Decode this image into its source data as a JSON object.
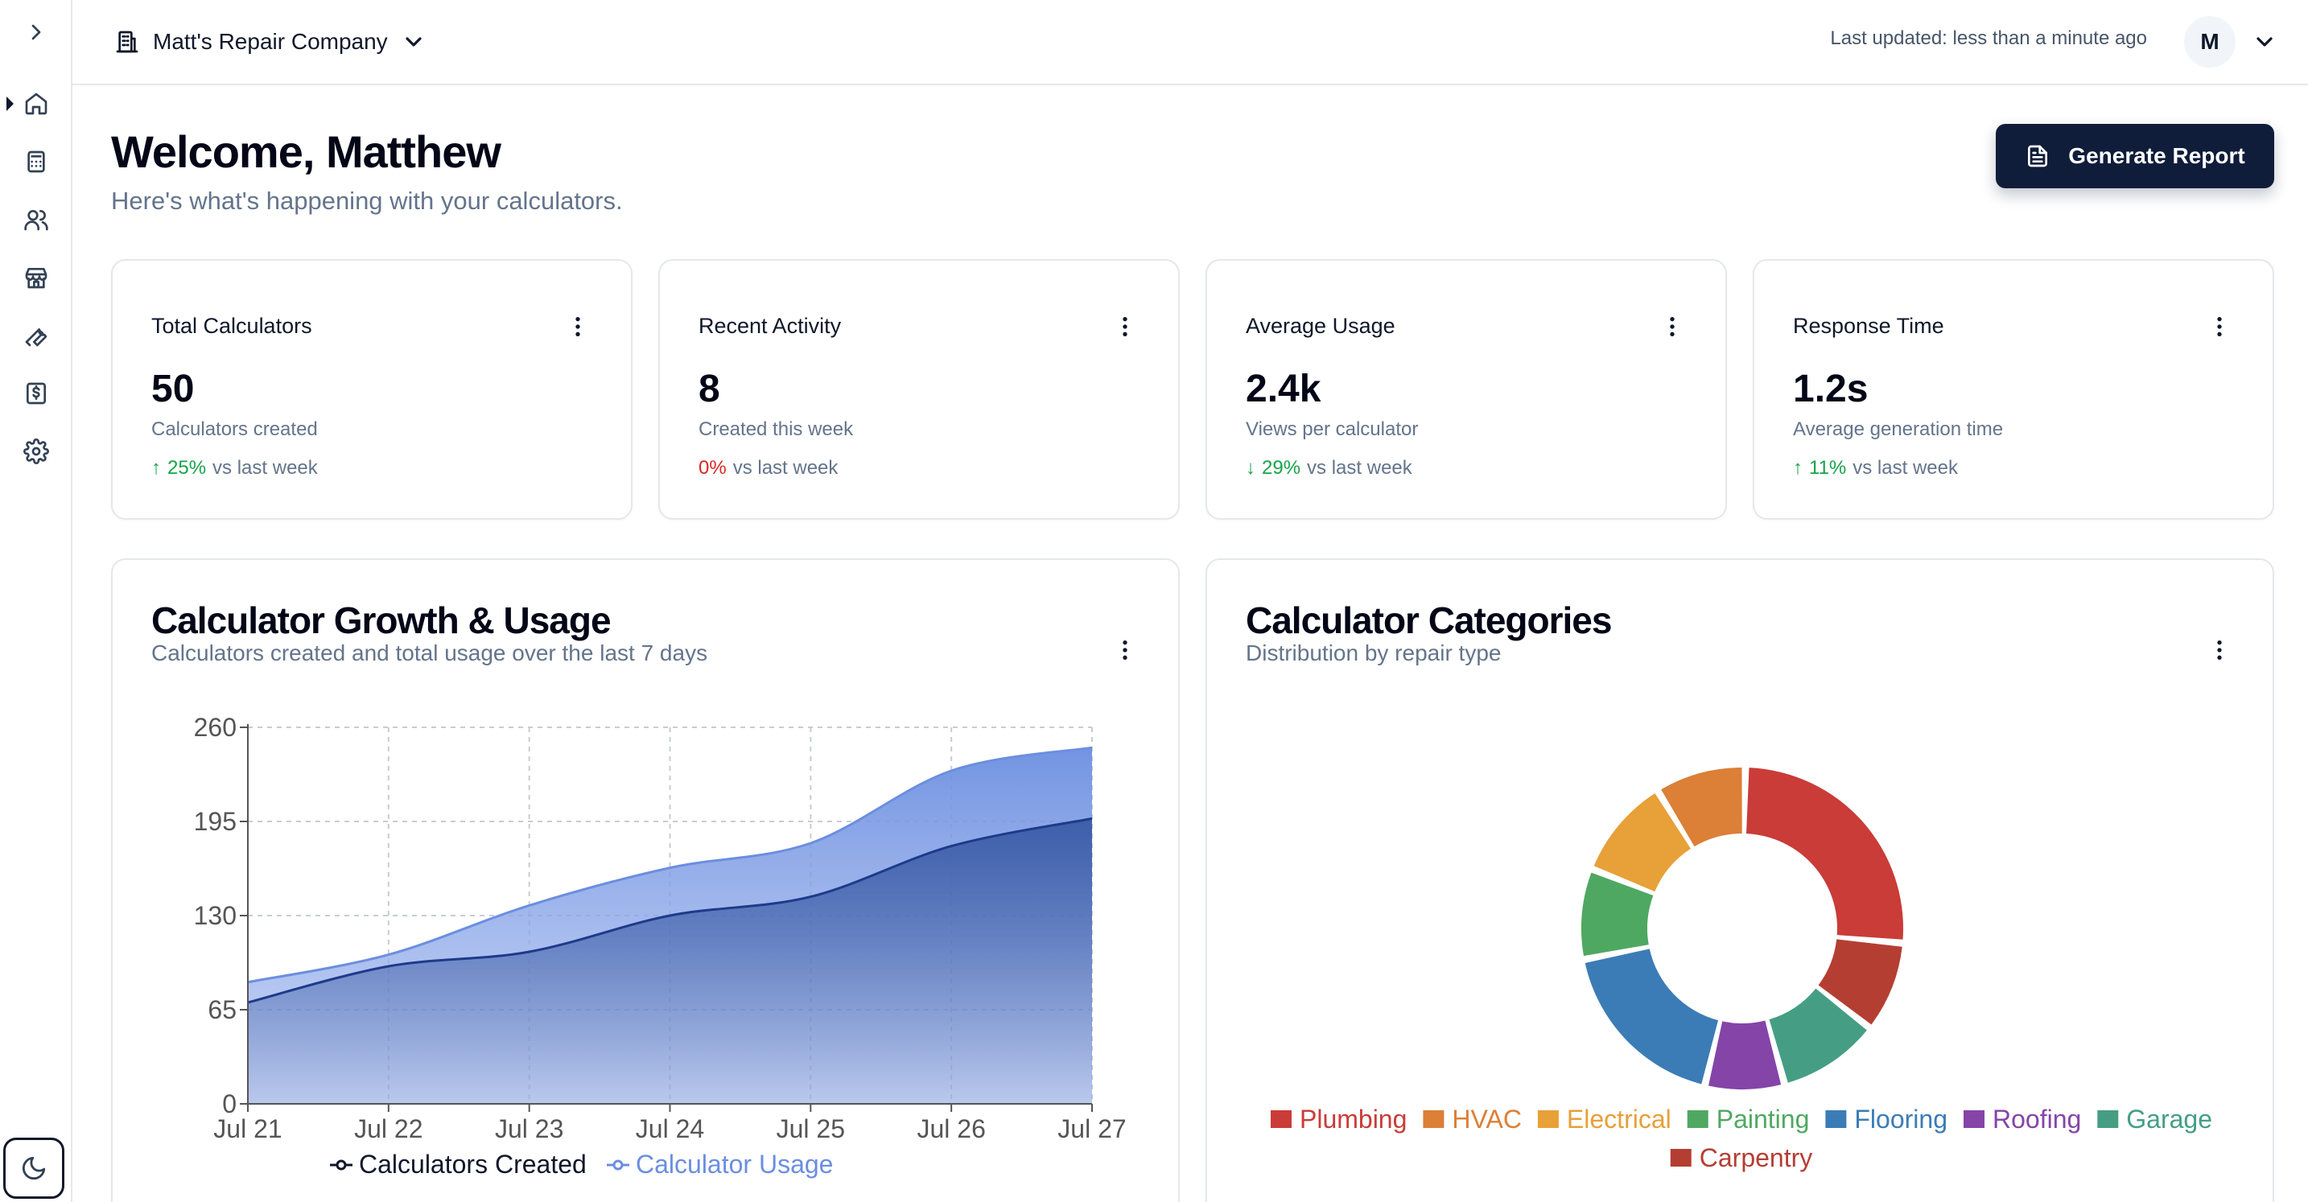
{
  "sidebar": {
    "items": [
      {
        "name": "home",
        "icon": "home-icon"
      },
      {
        "name": "calculators",
        "icon": "calculator-icon"
      },
      {
        "name": "users",
        "icon": "users-icon"
      },
      {
        "name": "store",
        "icon": "store-icon"
      },
      {
        "name": "tools",
        "icon": "wrench-icon"
      },
      {
        "name": "billing",
        "icon": "dollar-icon"
      },
      {
        "name": "settings",
        "icon": "gear-icon"
      }
    ]
  },
  "topbar": {
    "company": "Matt's Repair Company",
    "last_updated": "Last updated: less than a minute ago",
    "avatar_initial": "M"
  },
  "header": {
    "title": "Welcome, Matthew",
    "subtitle": "Here's what's happening with your calculators.",
    "generate_label": "Generate Report"
  },
  "stats": [
    {
      "title": "Total Calculators",
      "value": "50",
      "sub": "Calculators created",
      "arrow": "↑",
      "trend": "25%",
      "trend_suffix": "vs last week",
      "trend_color": "#16a34a"
    },
    {
      "title": "Recent Activity",
      "value": "8",
      "sub": "Created this week",
      "arrow": "",
      "trend": "0%",
      "trend_suffix": "vs last week",
      "trend_color": "#dc2626"
    },
    {
      "title": "Average Usage",
      "value": "2.4k",
      "sub": "Views per calculator",
      "arrow": "↓",
      "trend": "29%",
      "trend_suffix": "vs last week",
      "trend_color": "#16a34a"
    },
    {
      "title": "Response Time",
      "value": "1.2s",
      "sub": "Average generation time",
      "arrow": "↑",
      "trend": "11%",
      "trend_suffix": "vs last week",
      "trend_color": "#16a34a"
    }
  ],
  "growth_card": {
    "title": "Calculator Growth & Usage",
    "subtitle": "Calculators created and total usage over the last 7 days"
  },
  "categories_card": {
    "title": "Calculator Categories",
    "subtitle": "Distribution by repair type"
  },
  "chart_data": [
    {
      "type": "area",
      "categories": [
        "Jul 21",
        "Jul 22",
        "Jul 23",
        "Jul 24",
        "Jul 25",
        "Jul 26",
        "Jul 27"
      ],
      "yticks": [
        0,
        65,
        130,
        195,
        260
      ],
      "ylim": [
        0,
        260
      ],
      "grid": true,
      "legend": "bottom",
      "series": [
        {
          "name": "Calculators Created",
          "values": [
            70,
            95,
            105,
            130,
            143,
            178,
            197
          ],
          "color": "#1e3a8a"
        },
        {
          "name": "Calculator Usage",
          "values": [
            84,
            103,
            137,
            163,
            180,
            230,
            246
          ],
          "color": "#6b8ee0"
        }
      ]
    },
    {
      "type": "pie",
      "legend": "bottom",
      "slices": [
        {
          "name": "Plumbing",
          "value": 23,
          "color": "#c93c38"
        },
        {
          "name": "Carpentry",
          "value": 8,
          "color": "#b53e33"
        },
        {
          "name": "Garage",
          "value": 9,
          "color": "#459e83"
        },
        {
          "name": "Roofing",
          "value": 7,
          "color": "#8544a8"
        },
        {
          "name": "Flooring",
          "value": 16,
          "color": "#3b7cb6"
        },
        {
          "name": "Painting",
          "value": 8,
          "color": "#4fa862"
        },
        {
          "name": "Electrical",
          "value": 9,
          "color": "#e8a038"
        },
        {
          "name": "HVAC",
          "value": 8,
          "color": "#dc7f37"
        }
      ],
      "legend_order": [
        "Plumbing",
        "HVAC",
        "Electrical",
        "Painting",
        "Flooring",
        "Roofing",
        "Garage",
        "Carpentry"
      ]
    }
  ]
}
